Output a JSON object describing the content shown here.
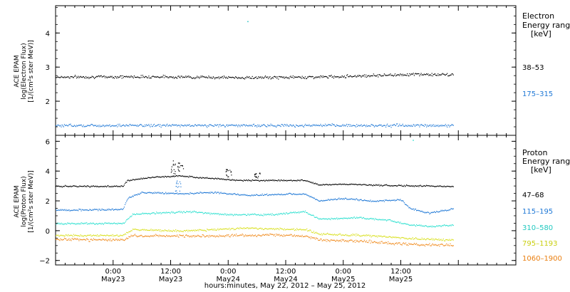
{
  "chart_data": [
    {
      "type": "scatter",
      "panel": "electron",
      "ylabel_lines": [
        "ACE EPAM",
        "log(Electron Flux)",
        "[1/(cm²s ster MeV)]"
      ],
      "yticks": [
        "2",
        "3",
        "4"
      ],
      "ylim": [
        1.0,
        4.8
      ],
      "legend_title": [
        "Electron",
        "Energy range",
        "[keV]"
      ],
      "series": [
        {
          "name": "38–53",
          "color": "#000000",
          "x_start_h": 0,
          "x_end_h": 83,
          "mean": 2.72,
          "trend": [
            [
              0,
              2.72
            ],
            [
              20,
              2.73
            ],
            [
              40,
              2.7
            ],
            [
              55,
              2.72
            ],
            [
              65,
              2.76
            ],
            [
              75,
              2.8
            ],
            [
              83,
              2.78
            ]
          ],
          "spread": 0.06
        },
        {
          "name": "175–315",
          "color": "#1f78d6",
          "x_start_h": 0,
          "x_end_h": 83,
          "mean": 1.3,
          "trend": [
            [
              0,
              1.3
            ],
            [
              83,
              1.3
            ]
          ],
          "spread": 0.06
        }
      ],
      "outliers": [
        {
          "x_h": 40,
          "y": 4.35,
          "color": "#1fbfbf"
        }
      ]
    },
    {
      "type": "scatter",
      "panel": "proton",
      "ylabel_lines": [
        "ACE EPAM",
        "log(Proton Flux)",
        "[1/(cm²s ster MeV)]"
      ],
      "yticks": [
        "−2",
        "0",
        "2",
        "4",
        "6"
      ],
      "ylim": [
        -2.3,
        6.4
      ],
      "legend_title": [
        "Proton",
        "Energy range",
        "[keV]"
      ],
      "series": [
        {
          "name": "47–68",
          "color": "#000000",
          "x_start_h": 0,
          "x_end_h": 83,
          "trend": [
            [
              0,
              3.0
            ],
            [
              14,
              3.0
            ],
            [
              15,
              3.4
            ],
            [
              20,
              3.6
            ],
            [
              26,
              3.7
            ],
            [
              30,
              3.6
            ],
            [
              38,
              3.4
            ],
            [
              52,
              3.4
            ],
            [
              55,
              3.1
            ],
            [
              60,
              3.15
            ],
            [
              70,
              3.05
            ],
            [
              83,
              3.0
            ]
          ],
          "spread": 0.07
        },
        {
          "name": "115–195",
          "color": "#1f78d6",
          "x_start_h": 0,
          "x_end_h": 83,
          "trend": [
            [
              0,
              1.4
            ],
            [
              14,
              1.45
            ],
            [
              15,
              2.2
            ],
            [
              18,
              2.6
            ],
            [
              27,
              2.5
            ],
            [
              32,
              2.6
            ],
            [
              40,
              2.4
            ],
            [
              52,
              2.5
            ],
            [
              55,
              2.0
            ],
            [
              60,
              2.2
            ],
            [
              66,
              2.0
            ],
            [
              72,
              2.1
            ],
            [
              74,
              1.5
            ],
            [
              78,
              1.2
            ],
            [
              83,
              1.5
            ]
          ],
          "spread": 0.08
        },
        {
          "name": "310–580",
          "color": "#2ee0d0",
          "x_start_h": 0,
          "x_end_h": 83,
          "trend": [
            [
              0,
              0.5
            ],
            [
              14,
              0.5
            ],
            [
              16,
              1.1
            ],
            [
              20,
              1.2
            ],
            [
              28,
              1.3
            ],
            [
              35,
              1.1
            ],
            [
              45,
              1.1
            ],
            [
              52,
              1.3
            ],
            [
              55,
              0.8
            ],
            [
              63,
              0.9
            ],
            [
              70,
              0.7
            ],
            [
              74,
              0.4
            ],
            [
              78,
              0.3
            ],
            [
              83,
              0.4
            ]
          ],
          "spread": 0.09
        },
        {
          "name": "795–1193",
          "color": "#d9e020",
          "x_start_h": 0,
          "x_end_h": 83,
          "trend": [
            [
              0,
              -0.3
            ],
            [
              14,
              -0.3
            ],
            [
              16,
              0.1
            ],
            [
              26,
              0.0
            ],
            [
              40,
              0.2
            ],
            [
              52,
              0.1
            ],
            [
              55,
              -0.2
            ],
            [
              65,
              -0.3
            ],
            [
              74,
              -0.5
            ],
            [
              83,
              -0.6
            ]
          ],
          "spread": 0.1
        },
        {
          "name": "1060–1900",
          "color": "#f08a1c",
          "x_start_h": 0,
          "x_end_h": 83,
          "trend": [
            [
              0,
              -0.55
            ],
            [
              14,
              -0.6
            ],
            [
              16,
              -0.3
            ],
            [
              30,
              -0.35
            ],
            [
              45,
              -0.25
            ],
            [
              52,
              -0.35
            ],
            [
              55,
              -0.6
            ],
            [
              65,
              -0.7
            ],
            [
              74,
              -0.9
            ],
            [
              83,
              -0.95
            ]
          ],
          "spread": 0.13
        }
      ],
      "spikes": [
        {
          "x_h": 24.5,
          "series": 0,
          "y": [
            3.7,
            4.8
          ]
        },
        {
          "x_h": 26,
          "series": 0,
          "y": [
            3.9,
            4.6
          ]
        },
        {
          "x_h": 25.5,
          "series": 1,
          "y": [
            2.6,
            3.5
          ]
        },
        {
          "x_h": 36,
          "series": 0,
          "y": [
            3.6,
            4.2
          ]
        },
        {
          "x_h": 42,
          "series": 0,
          "y": [
            3.5,
            3.9
          ]
        }
      ],
      "outliers": [
        {
          "x_h": 74.5,
          "y": 6.1,
          "color": "#2ee0d0"
        }
      ]
    }
  ],
  "x_axis": {
    "range_hours": [
      0,
      96
    ],
    "ticks": [
      {
        "h": 12,
        "time": "0:00",
        "date": "May23"
      },
      {
        "h": 24,
        "time": "12:00",
        "date": "May23"
      },
      {
        "h": 36,
        "time": "0:00",
        "date": "May24"
      },
      {
        "h": 48,
        "time": "12:00",
        "date": "May24"
      },
      {
        "h": 60,
        "time": "0:00",
        "date": "May25"
      },
      {
        "h": 72,
        "time": "12:00",
        "date": "May25"
      }
    ],
    "label": "hours:minutes, May 22, 2012 – May 25, 2012"
  },
  "legend_labels": {
    "electron": [
      "38–53",
      "175–315"
    ],
    "proton": [
      "47–68",
      "115–195",
      "310–580",
      "795–1193",
      "1060–1900"
    ]
  }
}
